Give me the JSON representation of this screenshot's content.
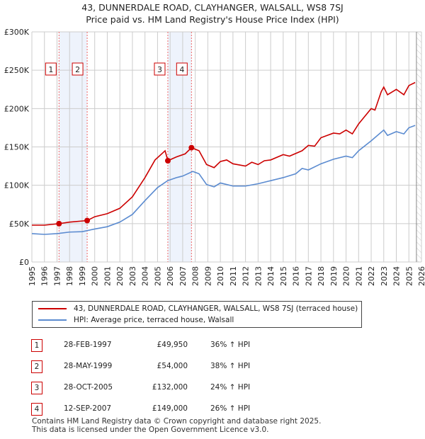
{
  "chart_data": {
    "type": "line",
    "title": "43, DUNNERDALE ROAD, CLAYHANGER, WALSALL, WS8 7SJ",
    "subtitle": "Price paid vs. HM Land Registry's House Price Index (HPI)",
    "xlim": [
      1995,
      2026
    ],
    "ylim": [
      0,
      300000
    ],
    "x_ticks": [
      "1995",
      "1996",
      "1997",
      "1998",
      "1999",
      "2000",
      "2001",
      "2002",
      "2003",
      "2004",
      "2005",
      "2006",
      "2007",
      "2008",
      "2009",
      "2010",
      "2011",
      "2012",
      "2013",
      "2014",
      "2015",
      "2016",
      "2017",
      "2018",
      "2019",
      "2020",
      "2021",
      "2022",
      "2023",
      "2024",
      "2025",
      "2026"
    ],
    "y_ticks": [
      {
        "v": 0,
        "label": "£0"
      },
      {
        "v": 50000,
        "label": "£50K"
      },
      {
        "v": 100000,
        "label": "£100K"
      },
      {
        "v": 150000,
        "label": "£150K"
      },
      {
        "v": 200000,
        "label": "£200K"
      },
      {
        "v": 250000,
        "label": "£250K"
      },
      {
        "v": 300000,
        "label": "£300K"
      }
    ],
    "grid": true,
    "shaded_ranges": [
      [
        1997.16,
        1999.4
      ],
      [
        2005.82,
        2007.7
      ]
    ],
    "forecast_from": 2025.6,
    "series": [
      {
        "name": "43, DUNNERDALE ROAD, CLAYHANGER, WALSALL, WS8 7SJ (terraced house)",
        "color": "#cc0000",
        "x": [
          1995,
          1996,
          1997.16,
          1998,
          1999.4,
          2000,
          2001,
          2002,
          2003,
          2004,
          2004.8,
          2005.6,
          2005.82,
          2006.5,
          2007.2,
          2007.7,
          2008.3,
          2008.9,
          2009.5,
          2010,
          2010.5,
          2011,
          2012,
          2012.5,
          2013,
          2013.5,
          2014,
          2015,
          2015.5,
          2016.5,
          2017,
          2017.5,
          2018,
          2019,
          2019.5,
          2020,
          2020.5,
          2021,
          2022,
          2022.3,
          2022.8,
          2023,
          2023.3,
          2024,
          2024.6,
          2025,
          2025.5
        ],
        "y": [
          48000,
          48000,
          49950,
          52000,
          54000,
          59000,
          63000,
          70000,
          85000,
          110000,
          133000,
          145000,
          132000,
          137000,
          141000,
          149000,
          145000,
          127000,
          123000,
          131000,
          133000,
          128000,
          125000,
          130000,
          127000,
          132000,
          133000,
          140000,
          138000,
          145000,
          152000,
          151000,
          162000,
          168000,
          167000,
          172000,
          167000,
          180000,
          200000,
          198000,
          222000,
          228000,
          218000,
          225000,
          218000,
          230000,
          234000
        ]
      },
      {
        "name": "HPI: Average price, terraced house, Walsall",
        "color": "#5b8bd0",
        "x": [
          1995,
          1996,
          1997,
          1998,
          1999,
          2000,
          2001,
          2002,
          2003,
          2004,
          2005,
          2005.8,
          2006.5,
          2007,
          2007.8,
          2008.3,
          2008.9,
          2009.5,
          2010,
          2011,
          2012,
          2013,
          2014,
          2015,
          2016,
          2016.5,
          2017,
          2018,
          2019,
          2020,
          2020.5,
          2021,
          2022,
          2023,
          2023.3,
          2024,
          2024.6,
          2025,
          2025.5
        ],
        "y": [
          37000,
          36000,
          37000,
          39000,
          39500,
          43000,
          46000,
          52000,
          62000,
          80000,
          97000,
          106000,
          110000,
          112000,
          118000,
          115000,
          101000,
          98000,
          103000,
          99000,
          99000,
          102000,
          106000,
          110000,
          115000,
          122000,
          120000,
          128000,
          134000,
          138000,
          136000,
          145000,
          158000,
          172000,
          165000,
          170000,
          167000,
          175000,
          178000
        ]
      }
    ],
    "sales": [
      {
        "label": "1",
        "x": 1997.16,
        "y": 49950
      },
      {
        "label": "2",
        "x": 1999.4,
        "y": 54000
      },
      {
        "label": "3",
        "x": 2005.82,
        "y": 132000
      },
      {
        "label": "4",
        "x": 2007.7,
        "y": 149000
      }
    ]
  },
  "legend": {
    "items": [
      "43, DUNNERDALE ROAD, CLAYHANGER, WALSALL, WS8 7SJ (terraced house)",
      "HPI: Average price, terraced house, Walsall"
    ]
  },
  "table": [
    {
      "n": "1",
      "date": "28-FEB-1997",
      "price": "£49,950",
      "hpi": "36% ↑ HPI"
    },
    {
      "n": "2",
      "date": "28-MAY-1999",
      "price": "£54,000",
      "hpi": "38% ↑ HPI"
    },
    {
      "n": "3",
      "date": "28-OCT-2005",
      "price": "£132,000",
      "hpi": "24% ↑ HPI"
    },
    {
      "n": "4",
      "date": "12-SEP-2007",
      "price": "£149,000",
      "hpi": "26% ↑ HPI"
    }
  ],
  "footer": [
    "Contains HM Land Registry data © Crown copyright and database right 2025.",
    "This data is licensed under the Open Government Licence v3.0."
  ]
}
